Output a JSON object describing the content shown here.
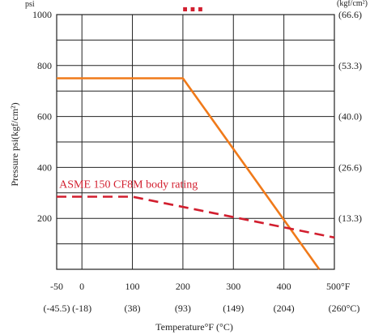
{
  "chart_data": {
    "type": "line",
    "banner": "...",
    "y_unit_left": "psi",
    "y_unit_right": "(kgf/cm²)",
    "ylabel": "Pressure psi(kgf/cm²)",
    "xlabel": "Temperature°F (°C)",
    "xlim": [
      -50,
      500
    ],
    "ylim": [
      0,
      1000
    ],
    "x_ticks": [
      {
        "f": -50,
        "label": "-50",
        "c_label": "(-45.5)"
      },
      {
        "f": 0,
        "label": "0",
        "c_label": "(-18)"
      },
      {
        "f": 100,
        "label": "100",
        "c_label": "(38)"
      },
      {
        "f": 200,
        "label": "200",
        "c_label": "(93)"
      },
      {
        "f": 300,
        "label": "300",
        "c_label": "(149)"
      },
      {
        "f": 400,
        "label": "400",
        "c_label": "(204)"
      },
      {
        "f": 500,
        "label": "500°F",
        "c_label": "(260°C)"
      }
    ],
    "y_ticks": [
      {
        "v": 0,
        "label": "",
        "right": ""
      },
      {
        "v": 200,
        "label": "200",
        "right": "(13.3)"
      },
      {
        "v": 400,
        "label": "400",
        "right": "(26.6)"
      },
      {
        "v": 600,
        "label": "600",
        "right": "(40.0)"
      },
      {
        "v": 800,
        "label": "800",
        "right": "(53.3)"
      },
      {
        "v": 1000,
        "label": "1000",
        "right": "(66.6)"
      }
    ],
    "grid": true,
    "series": [
      {
        "color": "#f07a1a",
        "style": "solid",
        "x": [
          -50,
          200,
          470
        ],
        "y": [
          750,
          750,
          0
        ]
      },
      {
        "color": "#d21f2f",
        "style": "dashed",
        "x": [
          -50,
          100,
          500
        ],
        "y": [
          285,
          285,
          125
        ]
      }
    ],
    "annotations": [
      {
        "text": "ASME 150 CF8M body rating",
        "x": -45,
        "y": 320,
        "color": "#d21f2f"
      }
    ]
  }
}
